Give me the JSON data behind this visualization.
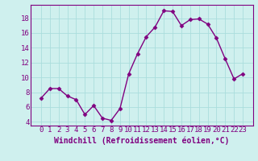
{
  "x": [
    0,
    1,
    2,
    3,
    4,
    5,
    6,
    7,
    8,
    9,
    10,
    11,
    12,
    13,
    14,
    15,
    16,
    17,
    18,
    19,
    20,
    21,
    22,
    23
  ],
  "y": [
    7.2,
    8.5,
    8.5,
    7.5,
    7.0,
    5.0,
    6.2,
    4.5,
    4.2,
    5.8,
    10.5,
    13.2,
    15.5,
    16.8,
    19.0,
    18.9,
    17.0,
    17.8,
    17.9,
    17.2,
    15.3,
    12.5,
    9.8,
    10.5
  ],
  "line_color": "#800080",
  "marker": "D",
  "marker_size": 2.5,
  "bg_color": "#cff0ee",
  "grid_color": "#aadddd",
  "xlabel": "Windchill (Refroidissement éolien,°C)",
  "xlabel_fontsize": 7,
  "tick_fontsize": 6.5,
  "ylim": [
    3.5,
    19.8
  ],
  "yticks": [
    4,
    6,
    8,
    10,
    12,
    14,
    16,
    18
  ],
  "xticks": [
    0,
    1,
    2,
    3,
    4,
    5,
    6,
    7,
    8,
    9,
    10,
    11,
    12,
    13,
    14,
    15,
    16,
    17,
    18,
    19,
    20,
    21,
    22,
    23
  ]
}
